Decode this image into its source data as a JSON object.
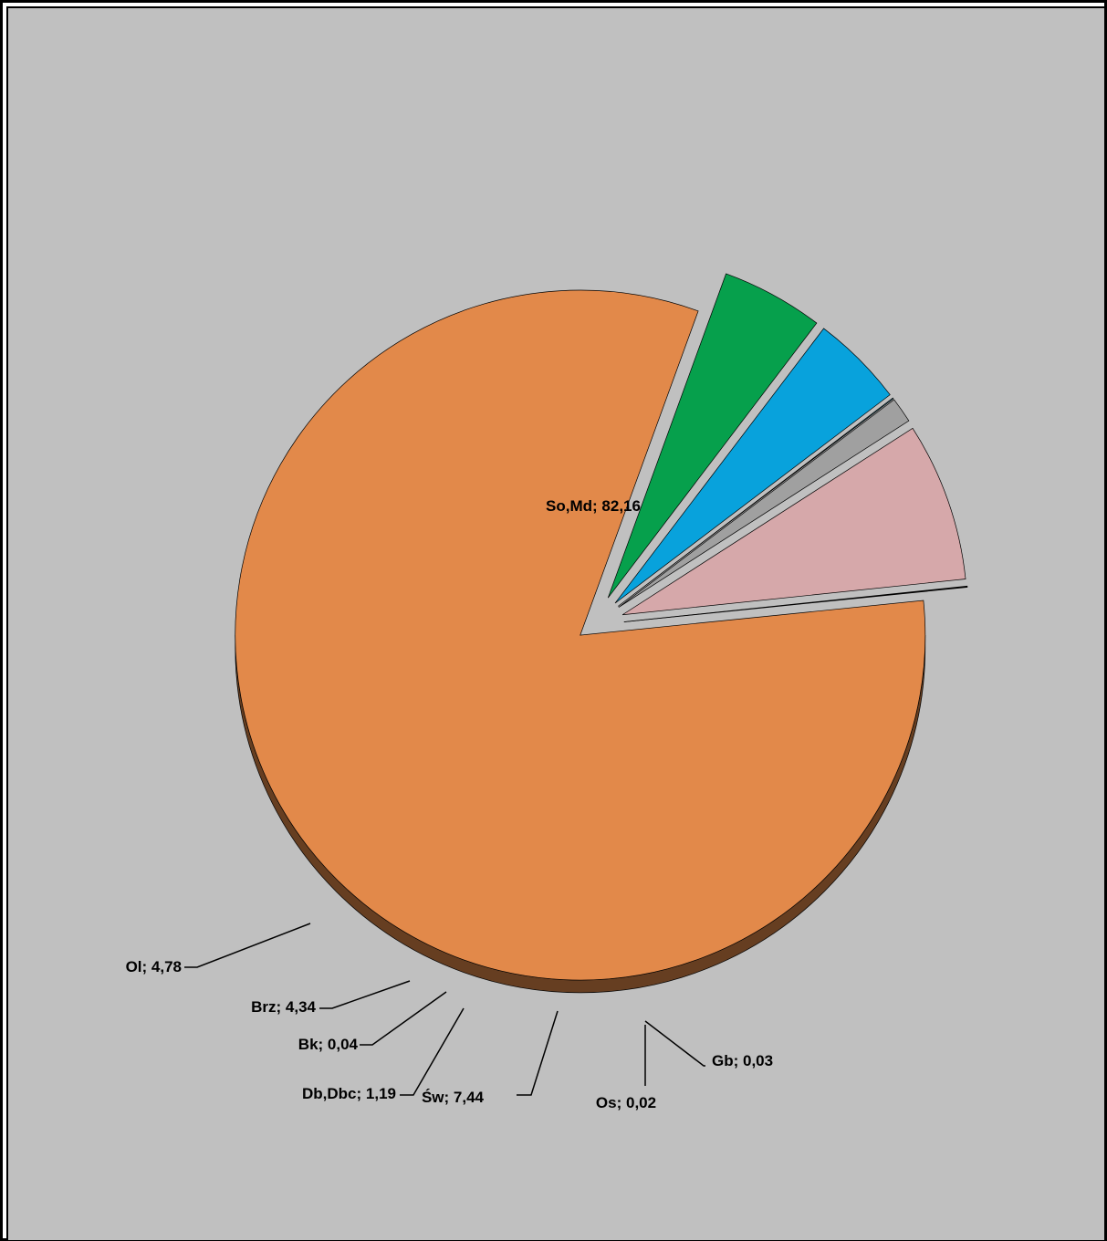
{
  "chart_data": {
    "type": "pie",
    "style": "3d-exploded",
    "slices": [
      {
        "label": "So,Md; 82,16",
        "name": "So,Md",
        "value": 82.16,
        "color": "#E2894A"
      },
      {
        "label": "Gb; 0,03",
        "name": "Gb",
        "value": 0.03,
        "color": "#C0504D"
      },
      {
        "label": "Os; 0,02",
        "name": "Os",
        "value": 0.02,
        "color": "#F2C8C8"
      },
      {
        "label": "Św; 7,44",
        "name": "Św",
        "value": 7.44,
        "color": "#D6A8AA"
      },
      {
        "label": "Db,Dbc; 1,19",
        "name": "Db,Dbc",
        "value": 1.19,
        "color": "#A0A0A0"
      },
      {
        "label": "Bk; 0,04",
        "name": "Bk",
        "value": 0.04,
        "color": "#4BACC6"
      },
      {
        "label": "Brz; 4,34",
        "name": "Brz",
        "value": 4.34,
        "color": "#08A2DC"
      },
      {
        "label": "Ol; 4,78",
        "name": "Ol",
        "value": 4.78,
        "color": "#06A04C"
      }
    ],
    "background": "#C0C0C0"
  }
}
